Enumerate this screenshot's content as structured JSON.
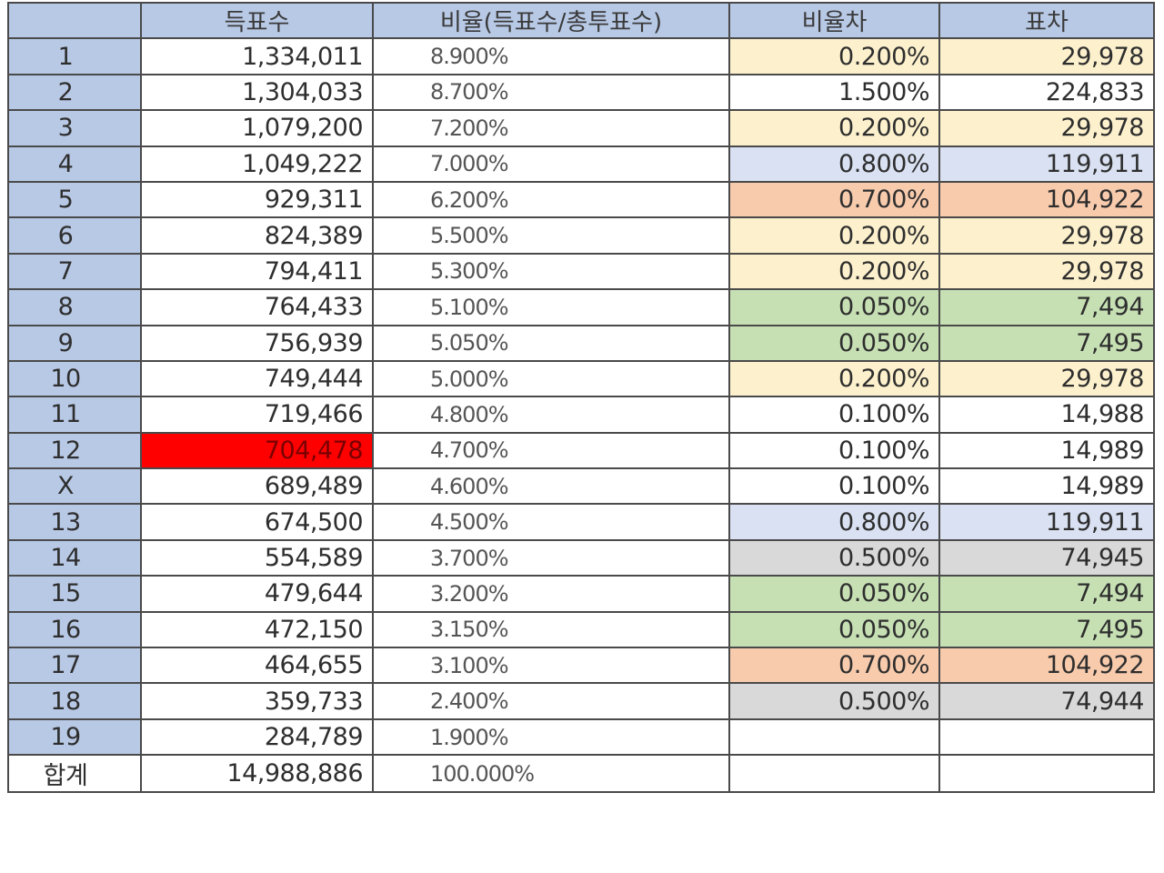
{
  "colors": {
    "header_bg": "#b8c9e6",
    "yellow": "#fdf1cd",
    "blue": "#d9e1f2",
    "orange": "#f8cbad",
    "green": "#c6e0b4",
    "gray": "#d9d9d9",
    "highlight_red": "#ff0000"
  },
  "table": {
    "headers": [
      "",
      "득표수",
      "비율(득표수/총투표수)",
      "비율차",
      "표차"
    ],
    "rows": [
      {
        "label": "1",
        "votes": "1,334,011",
        "ratio": "8.900%",
        "diff": "0.200%",
        "gap": "29,978",
        "fill": "yellow"
      },
      {
        "label": "2",
        "votes": "1,304,033",
        "ratio": "8.700%",
        "diff": "1.500%",
        "gap": "224,833",
        "fill": "none"
      },
      {
        "label": "3",
        "votes": "1,079,200",
        "ratio": "7.200%",
        "diff": "0.200%",
        "gap": "29,978",
        "fill": "yellow"
      },
      {
        "label": "4",
        "votes": "1,049,222",
        "ratio": "7.000%",
        "diff": "0.800%",
        "gap": "119,911",
        "fill": "blue"
      },
      {
        "label": "5",
        "votes": "929,311",
        "ratio": "6.200%",
        "diff": "0.700%",
        "gap": "104,922",
        "fill": "orange"
      },
      {
        "label": "6",
        "votes": "824,389",
        "ratio": "5.500%",
        "diff": "0.200%",
        "gap": "29,978",
        "fill": "yellow"
      },
      {
        "label": "7",
        "votes": "794,411",
        "ratio": "5.300%",
        "diff": "0.200%",
        "gap": "29,978",
        "fill": "yellow"
      },
      {
        "label": "8",
        "votes": "764,433",
        "ratio": "5.100%",
        "diff": "0.050%",
        "gap": "7,494",
        "fill": "green"
      },
      {
        "label": "9",
        "votes": "756,939",
        "ratio": "5.050%",
        "diff": "0.050%",
        "gap": "7,495",
        "fill": "green"
      },
      {
        "label": "10",
        "votes": "749,444",
        "ratio": "5.000%",
        "diff": "0.200%",
        "gap": "29,978",
        "fill": "yellow"
      },
      {
        "label": "11",
        "votes": "719,466",
        "ratio": "4.800%",
        "diff": "0.100%",
        "gap": "14,988",
        "fill": "none"
      },
      {
        "label": "12",
        "votes": "704,478",
        "ratio": "4.700%",
        "diff": "0.100%",
        "gap": "14,989",
        "fill": "none",
        "votes_highlight": true
      },
      {
        "label": "X",
        "votes": "689,489",
        "ratio": "4.600%",
        "diff": "0.100%",
        "gap": "14,989",
        "fill": "none"
      },
      {
        "label": "13",
        "votes": "674,500",
        "ratio": "4.500%",
        "diff": "0.800%",
        "gap": "119,911",
        "fill": "blue"
      },
      {
        "label": "14",
        "votes": "554,589",
        "ratio": "3.700%",
        "diff": "0.500%",
        "gap": "74,945",
        "fill": "gray"
      },
      {
        "label": "15",
        "votes": "479,644",
        "ratio": "3.200%",
        "diff": "0.050%",
        "gap": "7,494",
        "fill": "green"
      },
      {
        "label": "16",
        "votes": "472,150",
        "ratio": "3.150%",
        "diff": "0.050%",
        "gap": "7,495",
        "fill": "green"
      },
      {
        "label": "17",
        "votes": "464,655",
        "ratio": "3.100%",
        "diff": "0.700%",
        "gap": "104,922",
        "fill": "orange"
      },
      {
        "label": "18",
        "votes": "359,733",
        "ratio": "2.400%",
        "diff": "0.500%",
        "gap": "74,944",
        "fill": "gray"
      },
      {
        "label": "19",
        "votes": "284,789",
        "ratio": "1.900%",
        "diff": "",
        "gap": "",
        "fill": "none"
      }
    ],
    "total": {
      "label": "합계",
      "votes": "14,988,886",
      "ratio": "100.000%"
    }
  }
}
